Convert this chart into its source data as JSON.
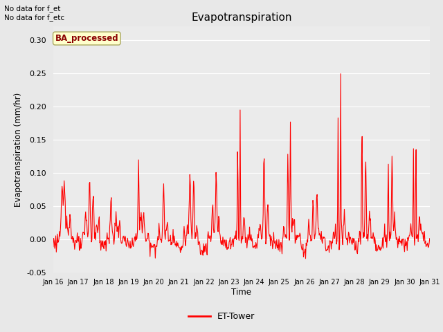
{
  "title": "Evapotranspiration",
  "ylabel": "Evapotranspiration (mm/hr)",
  "xlabel": "Time",
  "ylim": [
    -0.05,
    0.32
  ],
  "yticks": [
    -0.05,
    0.0,
    0.05,
    0.1,
    0.15,
    0.2,
    0.25,
    0.3
  ],
  "bg_color": "#e8e8e8",
  "plot_bg": "#ebebeb",
  "line_color": "red",
  "line_width": 0.8,
  "annotation_top_left": "No data for f_et\nNo data for f_etc",
  "badge_text": "BA_processed",
  "badge_bg": "#ffffcc",
  "badge_edge": "#aaa860",
  "legend_label": "ET-Tower",
  "xtick_labels": [
    "Jan 16",
    "Jan 17",
    "Jan 18",
    "Jan 19",
    "Jan 20",
    "Jan 21",
    "Jan 22",
    "Jan 23",
    "Jan 24",
    "Jan 25",
    "Jan 26",
    "Jan 27",
    "Jan 28",
    "Jan 29",
    "Jan 30",
    "Jan 31"
  ]
}
